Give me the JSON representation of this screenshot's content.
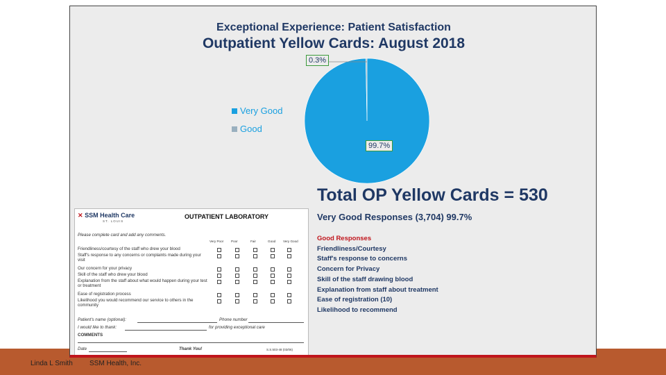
{
  "slide": {
    "supertitle": "Exceptional Experience: Patient Satisfaction",
    "title": "Outpatient Yellow Cards: August 2018"
  },
  "chart_data": {
    "type": "pie",
    "title": "Outpatient Yellow Cards: August 2018",
    "categories": [
      "Very Good",
      "Good"
    ],
    "values": [
      99.7,
      0.3
    ],
    "data_labels": [
      "99.7%",
      "0.3%"
    ],
    "legend": "left",
    "colors": [
      "#1aa0e0",
      "#9ab0bf"
    ]
  },
  "summary": {
    "total_label": "Total OP Yellow Cards = 530",
    "very_good": "Very Good Responses (3,704)  99.7%",
    "good_heading": "Good  Responses",
    "good_items": [
      "Friendliness/Courtesy",
      "Staff's  response  to  concerns",
      "Concern  for  Privacy",
      "Skill  of  the  staff  drawing  blood",
      "Explanation  from  staff  about  treatment",
      "Ease  of  registration  (10)",
      "Likelihood  to  recommend"
    ]
  },
  "card": {
    "brand": "SSM Health Care",
    "brand_mark": "SSM",
    "location": "ST. LOUIS",
    "title": "OUTPATIENT LABORATORY",
    "instructions": "Please complete card and add any comments.",
    "columns": [
      "Very Poor",
      "Poor",
      "Fair",
      "Good",
      "Very Good"
    ],
    "questions": [
      "Friendliness/courtesy of the staff who drew your blood",
      "Staff's response to any concerns or complaints made during your visit",
      "Our concern for your privacy",
      "Skill of the staff who drew your blood",
      "Explanation from the staff about what would happen during your test or treatment",
      "Ease of registration process",
      "Likelihood you would recommend our service to others in the community"
    ],
    "name_label": "Patient's name (optional):",
    "phone_label": "Phone number",
    "thank_label": "I would like to thank:",
    "thank_suffix": "for providing exceptional care",
    "comments_label": "COMMENTS",
    "date_label": "Date",
    "thanks": "Thank You!",
    "form_code": "S.S.503-48 (03/06)"
  },
  "footer": {
    "author": "Linda L Smith",
    "org": "SSM Health, Inc."
  }
}
